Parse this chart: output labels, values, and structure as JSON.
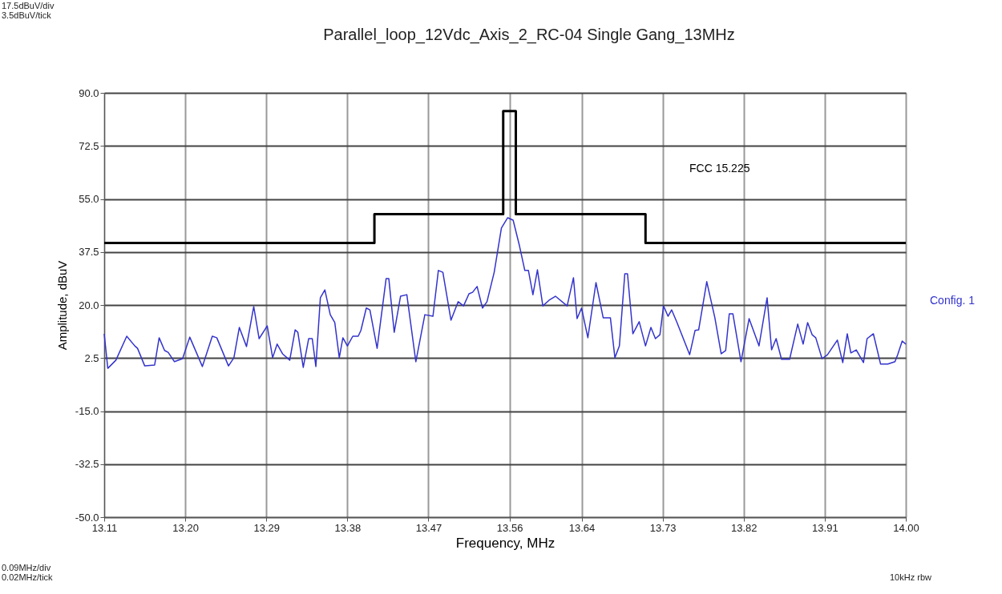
{
  "chart_data": {
    "type": "line",
    "title": "Parallel_loop_12Vdc_Axis_2_RC-04 Single Gang_13MHz",
    "xlabel": "Frequency, MHz",
    "ylabel": "Amplitude, dBuV",
    "xlim": [
      13.11,
      14.0
    ],
    "ylim": [
      -50,
      90
    ],
    "xticks": [
      13.11,
      {
        "value": 13.2,
        "label": "13.20"
      },
      13.29,
      13.38,
      13.47,
      13.56,
      13.64,
      13.73,
      13.82,
      13.91,
      {
        "value": 14.0,
        "label": "14.00"
      }
    ],
    "yticks": [
      {
        "value": -50,
        "label": "-50.0"
      },
      {
        "value": -32.5,
        "label": "-32.5"
      },
      {
        "value": -15,
        "label": "-15.0"
      },
      {
        "value": 2.5,
        "label": "2.5"
      },
      {
        "value": 20,
        "label": "20.0"
      },
      {
        "value": 37.5,
        "label": "37.5"
      },
      {
        "value": 55,
        "label": "55.0"
      },
      {
        "value": 72.5,
        "label": "72.5"
      },
      {
        "value": 90,
        "label": "90.0"
      }
    ],
    "grid": true,
    "legend": false,
    "marker": "none",
    "line_style": "solid",
    "annotations": [
      "17.5dBuV/div",
      "3.5dBuV/tick",
      "0.09MHz/div",
      "0.02MHz/tick",
      "10kHz  rbw"
    ],
    "series": [
      {
        "name": "Config. 1",
        "color": "#3333cc",
        "x": [
          13.11,
          13.114,
          13.123,
          13.135,
          13.144,
          13.147,
          13.155,
          13.166,
          13.171,
          13.177,
          13.181,
          13.188,
          13.197,
          13.205,
          13.219,
          13.23,
          13.235,
          13.248,
          13.254,
          13.26,
          13.268,
          13.276,
          13.282,
          13.291,
          13.297,
          13.302,
          13.308,
          13.316,
          13.322,
          13.325,
          13.331,
          13.337,
          13.341,
          13.345,
          13.35,
          13.355,
          13.361,
          13.366,
          13.371,
          13.375,
          13.38,
          13.386,
          13.392,
          13.395,
          13.401,
          13.405,
          13.413,
          13.423,
          13.426,
          13.432,
          13.439,
          13.446,
          13.456,
          13.466,
          13.475,
          13.481,
          13.486,
          13.495,
          13.503,
          13.509,
          13.515,
          13.519,
          13.524,
          13.53,
          13.535,
          13.543,
          13.551,
          13.558,
          13.564,
          13.571,
          13.577,
          13.581,
          13.586,
          13.591,
          13.597,
          13.604,
          13.611,
          13.624,
          13.631,
          13.635,
          13.64,
          13.647,
          13.656,
          13.664,
          13.672,
          13.677,
          13.682,
          13.688,
          13.691,
          13.697,
          13.704,
          13.711,
          13.717,
          13.722,
          13.727,
          13.731,
          13.736,
          13.74,
          13.746,
          13.76,
          13.766,
          13.77,
          13.779,
          13.788,
          13.795,
          13.8,
          13.804,
          13.808,
          13.817,
          13.826,
          13.837,
          13.846,
          13.851,
          13.856,
          13.862,
          13.871,
          13.88,
          13.886,
          13.891,
          13.896,
          13.9,
          13.907,
          13.913,
          13.924,
          13.93,
          13.935,
          13.939,
          13.945,
          13.953,
          13.957,
          13.964,
          13.972,
          13.98,
          13.988,
          13.991,
          13.996,
          14.0
        ],
        "values": [
          10.5,
          -0.9,
          1.8,
          9.7,
          6.5,
          5.7,
          -0.1,
          0.2,
          9.2,
          5.0,
          4.4,
          1.3,
          2.3,
          9.4,
          -0.3,
          9.7,
          9.2,
          -0.1,
          2.6,
          12.6,
          6.3,
          19.5,
          8.9,
          13.1,
          2.6,
          7.1,
          3.9,
          1.8,
          11.8,
          11.0,
          -0.6,
          8.9,
          8.9,
          -0.3,
          22.4,
          25.0,
          16.8,
          14.2,
          2.6,
          9.2,
          6.5,
          9.7,
          9.7,
          11.6,
          19.0,
          18.4,
          5.7,
          28.7,
          28.7,
          11.0,
          22.9,
          23.4,
          1.3,
          16.8,
          16.3,
          31.4,
          30.8,
          15.0,
          21.1,
          19.7,
          23.7,
          24.2,
          26.1,
          19.0,
          21.1,
          30.8,
          45.4,
          48.8,
          48.0,
          39.6,
          31.4,
          31.4,
          23.4,
          31.6,
          19.7,
          21.6,
          22.9,
          19.7,
          29.0,
          15.5,
          19.0,
          9.2,
          27.4,
          15.8,
          15.8,
          2.6,
          6.5,
          30.3,
          30.3,
          10.5,
          14.5,
          6.5,
          12.6,
          8.9,
          10.2,
          19.7,
          16.3,
          18.4,
          14.2,
          3.6,
          11.6,
          11.8,
          27.7,
          15.8,
          3.9,
          5.0,
          17.1,
          17.1,
          1.3,
          15.5,
          6.5,
          22.4,
          5.2,
          8.9,
          2.1,
          2.1,
          13.7,
          7.1,
          14.2,
          10.2,
          9.2,
          2.3,
          3.6,
          8.4,
          1.0,
          10.5,
          4.2,
          5.2,
          1.0,
          8.9,
          10.5,
          0.5,
          0.5,
          1.3,
          3.6,
          8.1,
          7.1
        ]
      },
      {
        "name": "FCC 15.225",
        "color": "#000000",
        "type": "step",
        "x": [
          13.11,
          13.41,
          13.553,
          13.567,
          13.711,
          14.0
        ],
        "values": [
          40.5,
          50,
          84,
          50,
          40.5,
          40.5
        ]
      }
    ]
  }
}
